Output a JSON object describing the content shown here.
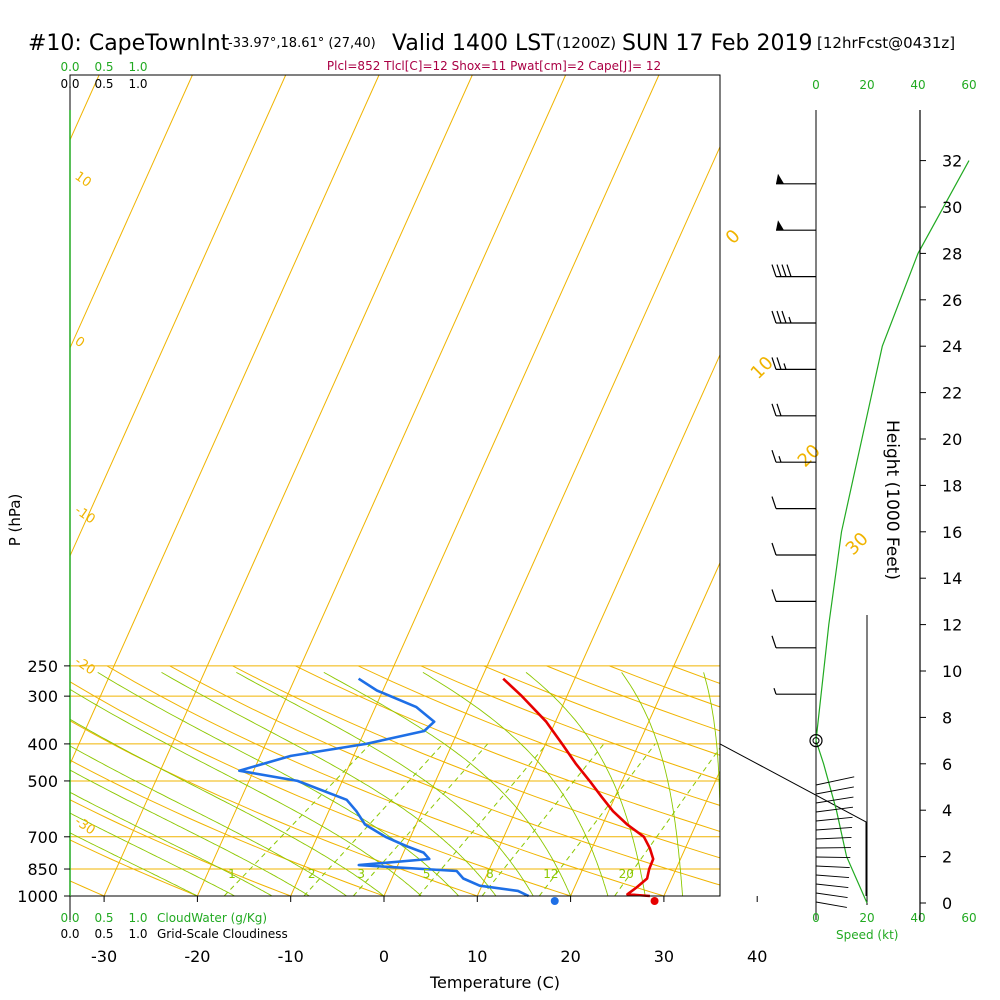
{
  "header": {
    "station": "#10: CapeTownInt",
    "coords": "-33.97°,18.61° (27,40)",
    "valid": "Valid 1400 LST",
    "zulu": "(1200Z)",
    "date": "SUN 17 Feb 2019",
    "forecast": "[12hrFcst@0431z]",
    "indices": "Plcl=852 Tlcl[C]=12 Shox=11 Pwat[cm]=2 Cape[J]= 12"
  },
  "colors": {
    "temperature": "#e60000",
    "dewpoint": "#1e6fe6",
    "isotherm": "#f0b400",
    "dry_adiabat": "#f0b400",
    "moist_adiabat": "#8cc800",
    "mixing_ratio": "#8cc800",
    "scale_green": "#22aa22",
    "indices": "#aa0044"
  },
  "chart_data": {
    "type": "skew-t",
    "xlabel": "Temperature (C)",
    "ylabel": "P (hPa)",
    "right_label": "Height (1000 Feet)",
    "xlim": [
      -30,
      45
    ],
    "ylim_hpa": [
      1000,
      250
    ],
    "x_ticks": [
      "-30",
      "-20",
      "-10",
      "0",
      "10",
      "20",
      "30",
      "40"
    ],
    "p_ticks": [
      "250",
      "300",
      "400",
      "500",
      "700",
      "850",
      "1000"
    ],
    "height_ticks": [
      "32",
      "30",
      "28",
      "26",
      "24",
      "22",
      "20",
      "18",
      "16",
      "14",
      "12",
      "10",
      "8",
      "6",
      "4",
      "2",
      "0"
    ],
    "cloud_water_scale": [
      "0.0",
      "0.5",
      "1.0"
    ],
    "cloud_water_label": "CloudWater (g/Kg)",
    "cloudiness_scale": [
      "0.0",
      "0.5",
      "1.0"
    ],
    "cloudiness_label": "Grid-Scale Cloudiness",
    "wind_speed_ticks": [
      "0",
      "20",
      "40",
      "60"
    ],
    "wind_speed_label": "Speed (kt)",
    "isotherm_labels": [
      "0",
      "10",
      "20",
      "30"
    ],
    "dry_adiabat_labels": [
      "10",
      "0",
      "-10",
      "-20",
      "-30"
    ],
    "mixing_ratio_labels": [
      "1",
      "2",
      "3",
      "5",
      "8",
      "12",
      "20"
    ],
    "temperature_profile": [
      {
        "p": 1000,
        "t": 28.5
      },
      {
        "p": 990,
        "t": 25.8
      },
      {
        "p": 950,
        "t": 25.6
      },
      {
        "p": 900,
        "t": 25.2
      },
      {
        "p": 850,
        "t": 23.8
      },
      {
        "p": 800,
        "t": 22.5
      },
      {
        "p": 750,
        "t": 20.3
      },
      {
        "p": 700,
        "t": 17.7
      },
      {
        "p": 650,
        "t": 13.8
      },
      {
        "p": 600,
        "t": 10.0
      },
      {
        "p": 550,
        "t": 6.3
      },
      {
        "p": 500,
        "t": 2.3
      },
      {
        "p": 450,
        "t": -2.2
      },
      {
        "p": 400,
        "t": -7.0
      },
      {
        "p": 350,
        "t": -12.5
      },
      {
        "p": 300,
        "t": -19.5
      },
      {
        "p": 270,
        "t": -24.5
      }
    ],
    "dewpoint_profile": [
      {
        "p": 1000,
        "t": 15.5
      },
      {
        "p": 970,
        "t": 13.5
      },
      {
        "p": 940,
        "t": 8.5
      },
      {
        "p": 900,
        "t": 5.5
      },
      {
        "p": 860,
        "t": 3.5
      },
      {
        "p": 830,
        "t": -8.0
      },
      {
        "p": 800,
        "t": -1.5
      },
      {
        "p": 770,
        "t": -3.2
      },
      {
        "p": 740,
        "t": -6.2
      },
      {
        "p": 700,
        "t": -10.0
      },
      {
        "p": 650,
        "t": -14.3
      },
      {
        "p": 600,
        "t": -17.5
      },
      {
        "p": 560,
        "t": -20.5
      },
      {
        "p": 500,
        "t": -29.0
      },
      {
        "p": 470,
        "t": -37.0
      },
      {
        "p": 430,
        "t": -34.0
      },
      {
        "p": 400,
        "t": -28.0
      },
      {
        "p": 370,
        "t": -24.0
      },
      {
        "p": 350,
        "t": -24.5
      },
      {
        "p": 320,
        "t": -29.0
      },
      {
        "p": 290,
        "t": -36.0
      },
      {
        "p": 270,
        "t": -40.0
      }
    ],
    "surface_temperature": 29,
    "surface_dewpoint": 18.3,
    "wind_barbs": [
      {
        "height_kft": 31,
        "speed_kt": 50
      },
      {
        "height_kft": 29,
        "speed_kt": 50
      },
      {
        "height_kft": 27,
        "speed_kt": 40
      },
      {
        "height_kft": 25,
        "speed_kt": 35
      },
      {
        "height_kft": 23,
        "speed_kt": 25
      },
      {
        "height_kft": 21,
        "speed_kt": 20
      },
      {
        "height_kft": 19,
        "speed_kt": 15
      },
      {
        "height_kft": 17,
        "speed_kt": 10
      },
      {
        "height_kft": 15,
        "speed_kt": 10
      },
      {
        "height_kft": 13,
        "speed_kt": 10
      },
      {
        "height_kft": 11,
        "speed_kt": 10
      },
      {
        "height_kft": 9,
        "speed_kt": 5
      },
      {
        "height_kft": 7,
        "speed_kt": 0
      }
    ],
    "wind_speed_profile": [
      {
        "height_kft": 0,
        "speed_kt": 20
      },
      {
        "height_kft": 2,
        "speed_kt": 12
      },
      {
        "height_kft": 4,
        "speed_kt": 8
      },
      {
        "height_kft": 6,
        "speed_kt": 3
      },
      {
        "height_kft": 7,
        "speed_kt": 0
      },
      {
        "height_kft": 12,
        "speed_kt": 5
      },
      {
        "height_kft": 16,
        "speed_kt": 10
      },
      {
        "height_kft": 20,
        "speed_kt": 18
      },
      {
        "height_kft": 24,
        "speed_kt": 26
      },
      {
        "height_kft": 28,
        "speed_kt": 40
      },
      {
        "height_kft": 32,
        "speed_kt": 60
      }
    ]
  }
}
